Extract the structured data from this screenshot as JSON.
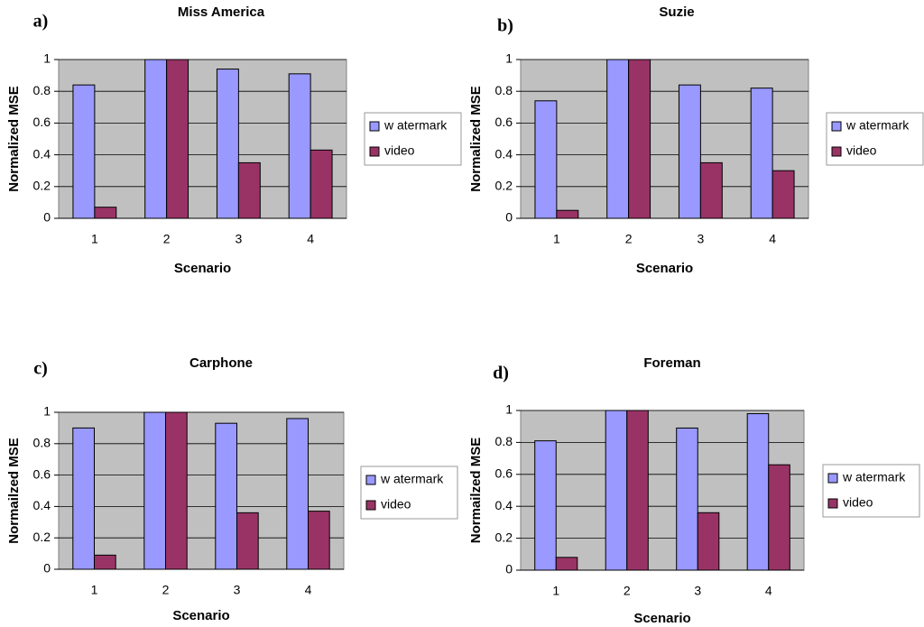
{
  "chart_data": [
    {
      "type": "bar",
      "annotation": "a)",
      "title": "Miss America",
      "x_label": "Scenario",
      "y_label": "Normalized MSE",
      "categories": [
        "1",
        "2",
        "3",
        "4"
      ],
      "ylim": [
        0,
        1
      ],
      "yticks": [
        0,
        0.2,
        0.4,
        0.6,
        0.8,
        1
      ],
      "grid": true,
      "series": [
        {
          "name": "w atermark",
          "color": "#9999ff",
          "values": [
            0.84,
            1,
            0.94,
            0.91
          ]
        },
        {
          "name": "video",
          "color": "#993366",
          "values": [
            0.07,
            1,
            0.35,
            0.43
          ]
        }
      ]
    },
    {
      "type": "bar",
      "annotation": "b)",
      "title": "Suzie",
      "x_label": "Scenario",
      "y_label": "Normalized MSE",
      "categories": [
        "1",
        "2",
        "3",
        "4"
      ],
      "ylim": [
        0,
        1
      ],
      "yticks": [
        0,
        0.2,
        0.4,
        0.6,
        0.8,
        1
      ],
      "grid": true,
      "series": [
        {
          "name": "w atermark",
          "color": "#9999ff",
          "values": [
            0.74,
            1,
            0.84,
            0.82
          ]
        },
        {
          "name": "video",
          "color": "#993366",
          "values": [
            0.05,
            1,
            0.35,
            0.3
          ]
        }
      ]
    },
    {
      "type": "bar",
      "annotation": "c)",
      "title": "Carphone",
      "x_label": "Scenario",
      "y_label": "Normailzed MSE",
      "categories": [
        "1",
        "2",
        "3",
        "4"
      ],
      "ylim": [
        0,
        1
      ],
      "yticks": [
        0,
        0.2,
        0.4,
        0.6,
        0.8,
        1
      ],
      "grid": true,
      "series": [
        {
          "name": "w atermark",
          "color": "#9999ff",
          "values": [
            0.9,
            1,
            0.93,
            0.96
          ]
        },
        {
          "name": "video",
          "color": "#993366",
          "values": [
            0.09,
            1,
            0.36,
            0.37
          ]
        }
      ]
    },
    {
      "type": "bar",
      "annotation": "d)",
      "title": "Foreman",
      "x_label": "Scenario",
      "y_label": "Normailzed MSE",
      "categories": [
        "1",
        "2",
        "3",
        "4"
      ],
      "ylim": [
        0,
        1
      ],
      "yticks": [
        0,
        0.2,
        0.4,
        0.6,
        0.8,
        1
      ],
      "grid": true,
      "series": [
        {
          "name": "w atermark",
          "color": "#9999ff",
          "values": [
            0.81,
            1,
            0.89,
            0.98
          ]
        },
        {
          "name": "video",
          "color": "#993366",
          "values": [
            0.08,
            1,
            0.36,
            0.66
          ]
        }
      ]
    }
  ]
}
